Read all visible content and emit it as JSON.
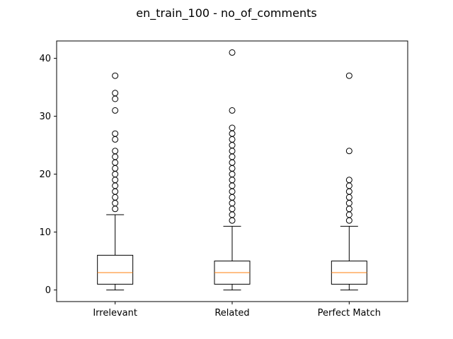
{
  "chart_data": {
    "type": "boxplot",
    "title": "en_train_100 - no_of_comments",
    "xlabel": "",
    "ylabel": "",
    "ylim": [
      -2,
      43
    ],
    "yticks": [
      0,
      10,
      20,
      30,
      40
    ],
    "grid": false,
    "categories": [
      "Irrelevant",
      "Related",
      "Perfect Match"
    ],
    "boxes": [
      {
        "name": "Irrelevant",
        "whisker_low": 0,
        "q1": 1,
        "median": 3,
        "q3": 6,
        "whisker_high": 13,
        "outliers": [
          14,
          15,
          16,
          17,
          18,
          19,
          20,
          21,
          22,
          23,
          24,
          26,
          27,
          31,
          33,
          34,
          37
        ]
      },
      {
        "name": "Related",
        "whisker_low": 0,
        "q1": 1,
        "median": 3,
        "q3": 5,
        "whisker_high": 11,
        "outliers": [
          12,
          13,
          14,
          15,
          16,
          17,
          18,
          19,
          20,
          21,
          22,
          23,
          24,
          25,
          26,
          27,
          28,
          31,
          41
        ]
      },
      {
        "name": "Perfect Match",
        "whisker_low": 0,
        "q1": 1,
        "median": 3,
        "q3": 5,
        "whisker_high": 11,
        "outliers": [
          12,
          13,
          14,
          15,
          16,
          17,
          18,
          19,
          24,
          37
        ]
      }
    ],
    "colors": {
      "box": "#000000",
      "median": "#ff7f0e",
      "outlier": "#000000"
    }
  }
}
